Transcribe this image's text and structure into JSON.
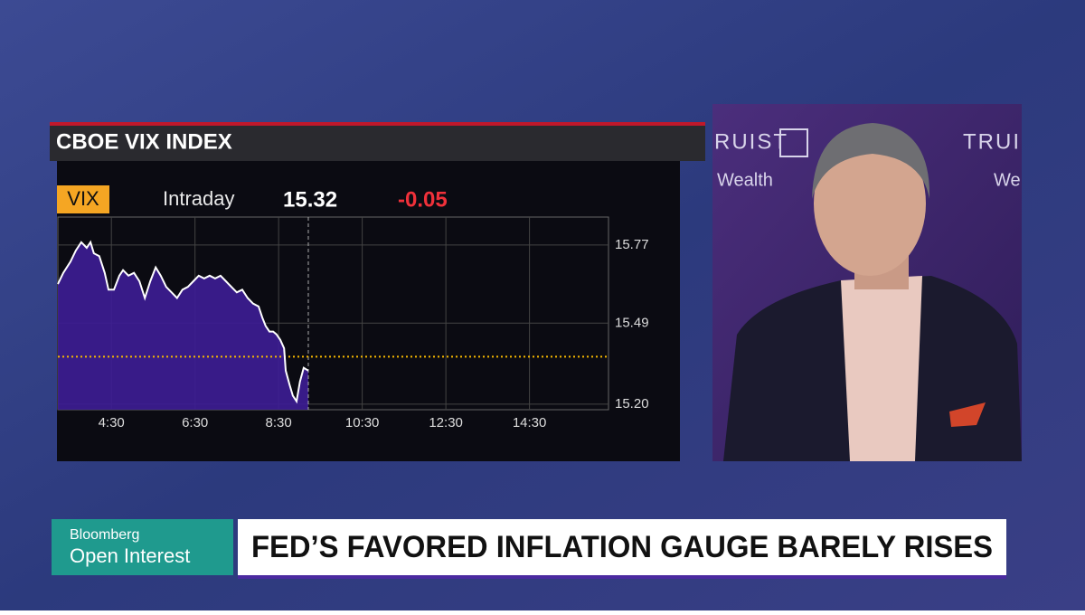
{
  "chart_data": {
    "type": "area",
    "title": "CBOE VIX INDEX",
    "ticker": "VIX",
    "period": "Intraday",
    "last": 15.32,
    "change": -0.05,
    "x": [
      3.22,
      3.35,
      3.52,
      3.65,
      3.78,
      3.91,
      4.0,
      4.08,
      4.21,
      4.34,
      4.43,
      4.56,
      4.69,
      4.78,
      4.91,
      5.04,
      5.17,
      5.3,
      5.43,
      5.56,
      5.68,
      5.81,
      5.94,
      6.07,
      6.2,
      6.33,
      6.46,
      6.59,
      6.72,
      6.85,
      6.98,
      7.11,
      7.24,
      7.37,
      7.5,
      7.63,
      7.76,
      7.89,
      8.02,
      8.11,
      8.19,
      8.28,
      8.37,
      8.45,
      8.54,
      8.63,
      8.67,
      8.76,
      8.84,
      8.93,
      9.01,
      9.1,
      9.21
    ],
    "values": [
      15.63,
      15.67,
      15.71,
      15.75,
      15.78,
      15.76,
      15.78,
      15.74,
      15.73,
      15.67,
      15.61,
      15.61,
      15.66,
      15.68,
      15.66,
      15.67,
      15.64,
      15.58,
      15.64,
      15.69,
      15.66,
      15.62,
      15.6,
      15.58,
      15.61,
      15.62,
      15.64,
      15.66,
      15.65,
      15.66,
      15.65,
      15.66,
      15.64,
      15.62,
      15.6,
      15.61,
      15.58,
      15.56,
      15.55,
      15.51,
      15.48,
      15.46,
      15.46,
      15.45,
      15.43,
      15.4,
      15.32,
      15.27,
      15.23,
      15.21,
      15.28,
      15.33,
      15.32
    ],
    "color": "#3d1d96",
    "line_color": "#ffffff",
    "reference_line": 15.37,
    "reference_color": "#f5b800",
    "xlim": [
      3.22,
      16.39
    ],
    "xticks": [
      {
        "value": 4.5,
        "label": "4:30"
      },
      {
        "value": 6.5,
        "label": "6:30"
      },
      {
        "value": 8.5,
        "label": "8:30"
      },
      {
        "value": 10.5,
        "label": "10:30"
      },
      {
        "value": 12.5,
        "label": "12:30"
      },
      {
        "value": 14.5,
        "label": "14:30"
      }
    ],
    "ylim": [
      15.18,
      15.87
    ],
    "yticks": [
      {
        "value": 15.2,
        "label": "15.20"
      },
      15.49,
      15.77
    ],
    "grid": true
  },
  "signage": [
    "RUIST",
    "Wealth",
    "TRUI",
    "We"
  ],
  "lower_third": {
    "brand": "Bloomberg",
    "show": "Open Interest",
    "headline": "FED’S FAVORED INFLATION GAUGE BARELY RISES"
  }
}
